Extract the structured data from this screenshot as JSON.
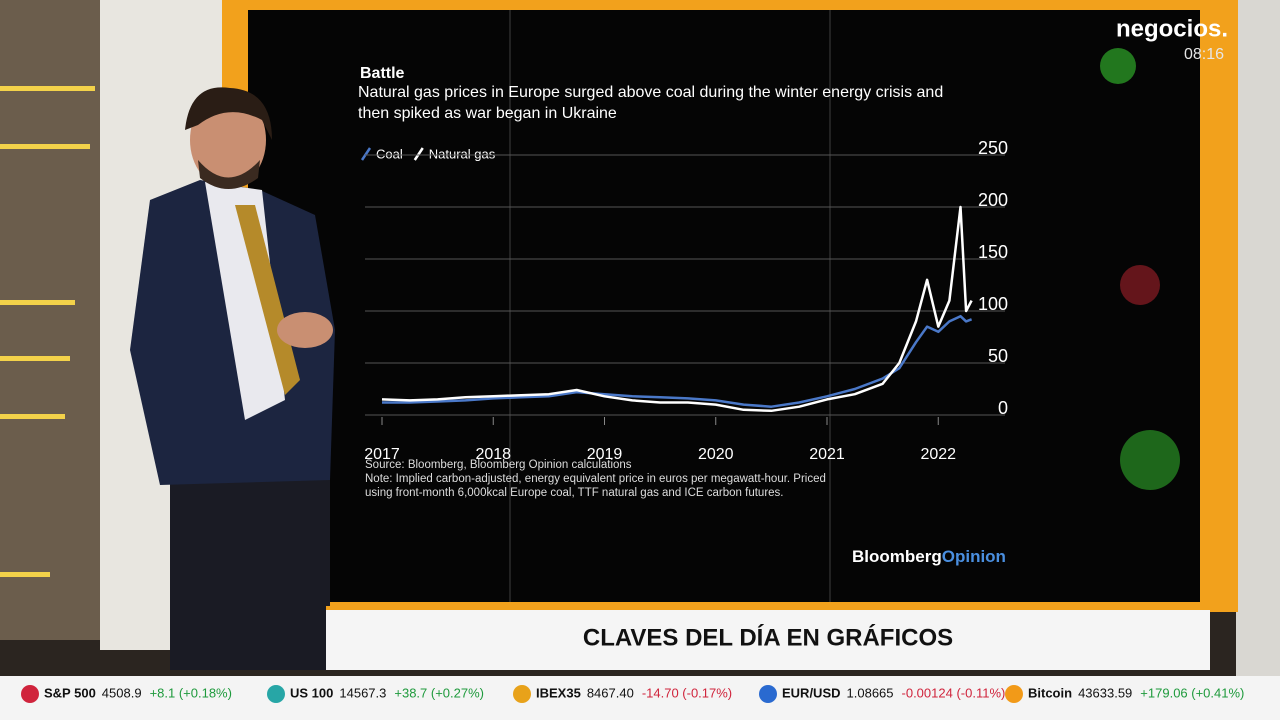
{
  "chart_data": {
    "type": "line",
    "title": "Battle",
    "subtitle": "Natural gas prices in Europe surged above coal during the winter energy crisis and then spiked as war began in Ukraine",
    "x": [
      2017.0,
      2017.25,
      2017.5,
      2017.75,
      2018.0,
      2018.25,
      2018.5,
      2018.75,
      2019.0,
      2019.25,
      2019.5,
      2019.75,
      2020.0,
      2020.25,
      2020.5,
      2020.75,
      2021.0,
      2021.25,
      2021.5,
      2021.65,
      2021.8,
      2021.9,
      2022.0,
      2022.1,
      2022.2,
      2022.25,
      2022.3
    ],
    "series": [
      {
        "name": "Coal",
        "color": "#4a78c8",
        "values": [
          12,
          12,
          13,
          14,
          16,
          17,
          18,
          22,
          20,
          18,
          17,
          16,
          14,
          10,
          8,
          12,
          18,
          25,
          35,
          45,
          70,
          85,
          80,
          90,
          95,
          90,
          92
        ]
      },
      {
        "name": "Natural gas",
        "color": "#ffffff",
        "values": [
          15,
          14,
          15,
          17,
          18,
          19,
          20,
          24,
          18,
          14,
          12,
          12,
          10,
          5,
          4,
          8,
          15,
          20,
          30,
          50,
          90,
          130,
          85,
          110,
          200,
          100,
          110
        ]
      }
    ],
    "xlim": [
      2017,
      2022.6
    ],
    "xticks": [
      2017,
      2018,
      2019,
      2020,
      2021,
      2022
    ],
    "ylim": [
      0,
      250
    ],
    "yticks": [
      0,
      50,
      100,
      150,
      200,
      250
    ],
    "grid": true,
    "source": "Source: Bloomberg, Bloomberg Opinion calculations",
    "note": "Note: Implied carbon-adjusted, energy equivalent price in euros per megawatt-hour. Priced using front-month 6,000kcal Europe coal, TTF natural gas and ICE carbon futures.",
    "brand": {
      "main": "Bloomberg",
      "accent": "Opinion"
    }
  },
  "channel": {
    "logo": "negocios.",
    "time": "08:16"
  },
  "lower_third": "CLAVES DEL DÍA EN GRÁFICOS",
  "ticker": [
    {
      "name": "S&P 500",
      "price": "4508.9",
      "change": "+8.1 (+0.18%)",
      "color": "#d0243c"
    },
    {
      "name": "US 100",
      "price": "14567.3",
      "change": "+38.7 (+0.27%)",
      "color": "#27a6a6"
    },
    {
      "name": "IBEX35",
      "price": "8467.40",
      "change": "-14.70 (-0.17%)",
      "color": "#e8a21a"
    },
    {
      "name": "EUR/USD",
      "price": "1.08665",
      "change": "-0.00124 (-0.11%)",
      "color": "#2a6ad0"
    },
    {
      "name": "Bitcoin",
      "price": "43633.59",
      "change": "+179.06 (+0.41%)",
      "color": "#f29a18"
    }
  ]
}
